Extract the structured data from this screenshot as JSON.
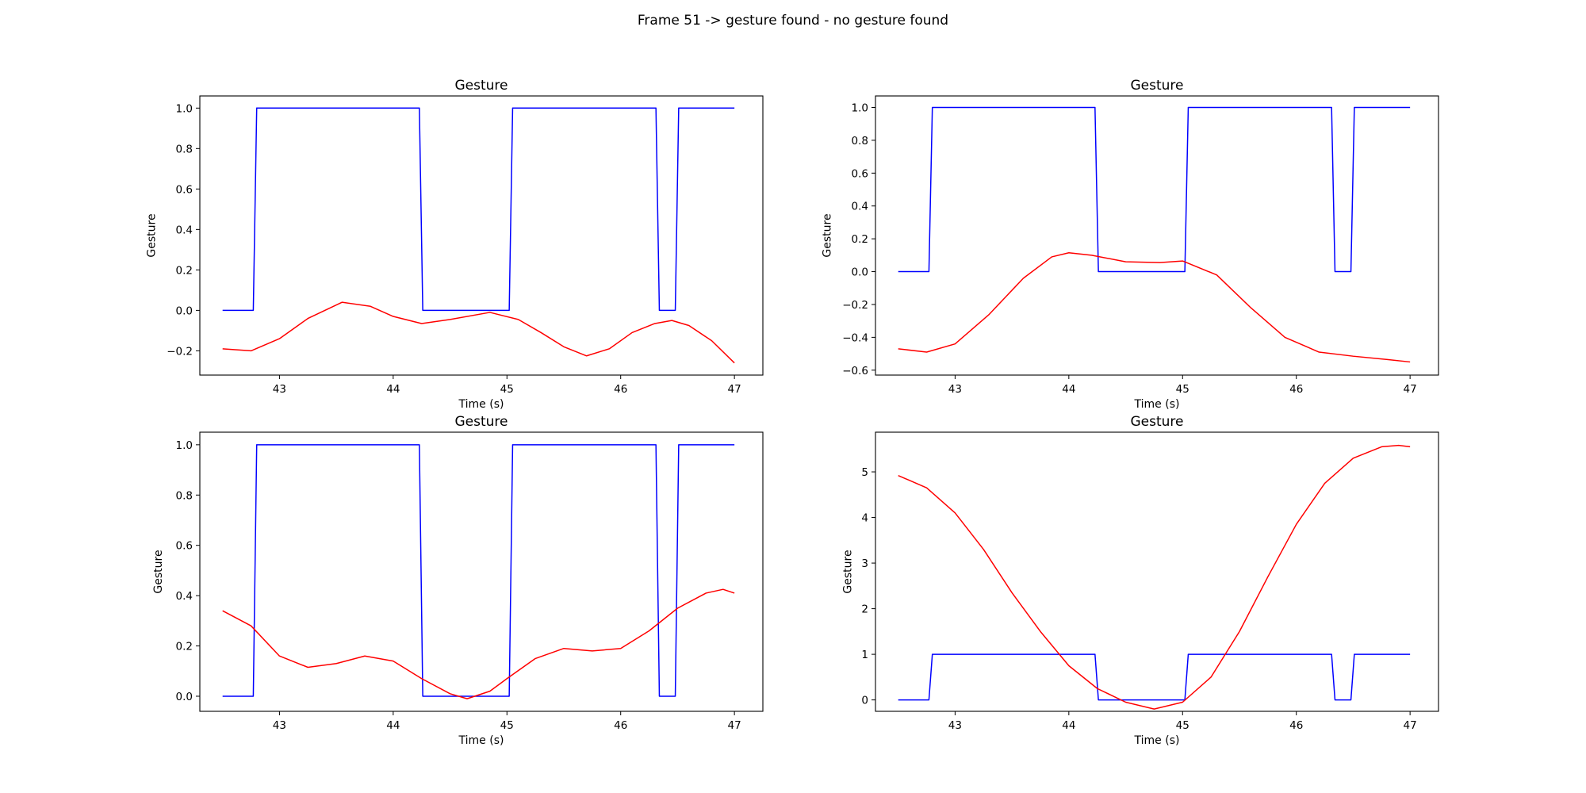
{
  "figure": {
    "title": "Frame 51 -> gesture found - no gesture found"
  },
  "colors": {
    "gesture_line": "#0000ff",
    "signal_line": "#ff0000",
    "axes": "#000000",
    "background": "#ffffff"
  },
  "chart_data": [
    {
      "type": "line",
      "title": "Gesture",
      "xlabel": "Time (s)",
      "ylabel": "Gesture",
      "xlim": [
        42.3,
        47.25
      ],
      "ylim": [
        -0.32,
        1.06
      ],
      "xticks": [
        43,
        44,
        45,
        46,
        47
      ],
      "yticks": [
        -0.2,
        0.0,
        0.2,
        0.4,
        0.6,
        0.8,
        1.0
      ],
      "ytick_decimals": 1,
      "grid": false,
      "series": [
        {
          "color": "#0000ff",
          "x": [
            42.5,
            42.77,
            42.8,
            44.23,
            44.26,
            45.02,
            45.05,
            46.31,
            46.34,
            46.48,
            46.51,
            47.0
          ],
          "y": [
            0,
            0,
            1,
            1,
            0,
            0,
            1,
            1,
            0,
            0,
            1,
            1
          ]
        },
        {
          "color": "#ff0000",
          "x": [
            42.5,
            42.75,
            43.0,
            43.25,
            43.55,
            43.8,
            44.0,
            44.25,
            44.5,
            44.85,
            45.1,
            45.3,
            45.5,
            45.7,
            45.9,
            46.1,
            46.3,
            46.45,
            46.6,
            46.8,
            47.0
          ],
          "y": [
            -0.19,
            -0.2,
            -0.14,
            -0.04,
            0.04,
            0.02,
            -0.03,
            -0.065,
            -0.045,
            -0.01,
            -0.045,
            -0.11,
            -0.18,
            -0.225,
            -0.19,
            -0.11,
            -0.065,
            -0.05,
            -0.075,
            -0.15,
            -0.26
          ]
        }
      ]
    },
    {
      "type": "line",
      "title": "Gesture",
      "xlabel": "Time (s)",
      "ylabel": "Gesture",
      "xlim": [
        42.3,
        47.25
      ],
      "ylim": [
        -0.63,
        1.07
      ],
      "xticks": [
        43,
        44,
        45,
        46,
        47
      ],
      "yticks": [
        -0.6,
        -0.4,
        -0.2,
        0.0,
        0.2,
        0.4,
        0.6,
        0.8,
        1.0
      ],
      "ytick_decimals": 1,
      "grid": false,
      "series": [
        {
          "color": "#0000ff",
          "x": [
            42.5,
            42.77,
            42.8,
            44.23,
            44.26,
            45.02,
            45.05,
            46.31,
            46.34,
            46.48,
            46.51,
            47.0
          ],
          "y": [
            0,
            0,
            1,
            1,
            0,
            0,
            1,
            1,
            0,
            0,
            1,
            1
          ]
        },
        {
          "color": "#ff0000",
          "x": [
            42.5,
            42.75,
            43.0,
            43.3,
            43.6,
            43.85,
            44.0,
            44.2,
            44.5,
            44.8,
            45.0,
            45.3,
            45.6,
            45.9,
            46.2,
            46.5,
            46.8,
            47.0
          ],
          "y": [
            -0.47,
            -0.49,
            -0.44,
            -0.26,
            -0.04,
            0.09,
            0.115,
            0.1,
            0.06,
            0.055,
            0.065,
            -0.02,
            -0.22,
            -0.4,
            -0.49,
            -0.515,
            -0.535,
            -0.55
          ]
        }
      ]
    },
    {
      "type": "line",
      "title": "Gesture",
      "xlabel": "Time (s)",
      "ylabel": "Gesture",
      "xlim": [
        42.3,
        47.25
      ],
      "ylim": [
        -0.06,
        1.05
      ],
      "xticks": [
        43,
        44,
        45,
        46,
        47
      ],
      "yticks": [
        0.0,
        0.2,
        0.4,
        0.6,
        0.8,
        1.0
      ],
      "ytick_decimals": 1,
      "grid": false,
      "series": [
        {
          "color": "#0000ff",
          "x": [
            42.5,
            42.77,
            42.8,
            44.23,
            44.26,
            45.02,
            45.05,
            46.31,
            46.34,
            46.48,
            46.51,
            47.0
          ],
          "y": [
            0,
            0,
            1,
            1,
            0,
            0,
            1,
            1,
            0,
            0,
            1,
            1
          ]
        },
        {
          "color": "#ff0000",
          "x": [
            42.5,
            42.75,
            43.0,
            43.25,
            43.5,
            43.75,
            44.0,
            44.25,
            44.5,
            44.65,
            44.85,
            45.0,
            45.25,
            45.5,
            45.75,
            46.0,
            46.25,
            46.5,
            46.75,
            46.9,
            47.0
          ],
          "y": [
            0.34,
            0.28,
            0.16,
            0.115,
            0.13,
            0.16,
            0.14,
            0.07,
            0.01,
            -0.01,
            0.02,
            0.07,
            0.15,
            0.19,
            0.18,
            0.19,
            0.26,
            0.35,
            0.41,
            0.425,
            0.41
          ]
        }
      ]
    },
    {
      "type": "line",
      "title": "Gesture",
      "xlabel": "Time (s)",
      "ylabel": "Gesture",
      "xlim": [
        42.3,
        47.25
      ],
      "ylim": [
        -0.25,
        5.87
      ],
      "xticks": [
        43,
        44,
        45,
        46,
        47
      ],
      "yticks": [
        0,
        1,
        2,
        3,
        4,
        5
      ],
      "ytick_decimals": 0,
      "grid": false,
      "series": [
        {
          "color": "#0000ff",
          "x": [
            42.5,
            42.77,
            42.8,
            44.23,
            44.26,
            45.02,
            45.05,
            46.31,
            46.34,
            46.48,
            46.51,
            47.0
          ],
          "y": [
            0,
            0,
            1,
            1,
            0,
            0,
            1,
            1,
            0,
            0,
            1,
            1
          ]
        },
        {
          "color": "#ff0000",
          "x": [
            42.5,
            42.75,
            43.0,
            43.25,
            43.5,
            43.75,
            44.0,
            44.25,
            44.5,
            44.75,
            45.0,
            45.25,
            45.5,
            45.75,
            46.0,
            46.25,
            46.5,
            46.75,
            46.9,
            47.0
          ],
          "y": [
            4.92,
            4.65,
            4.1,
            3.3,
            2.35,
            1.5,
            0.75,
            0.25,
            -0.05,
            -0.2,
            -0.05,
            0.5,
            1.5,
            2.7,
            3.85,
            4.75,
            5.3,
            5.55,
            5.58,
            5.55
          ]
        }
      ]
    }
  ]
}
